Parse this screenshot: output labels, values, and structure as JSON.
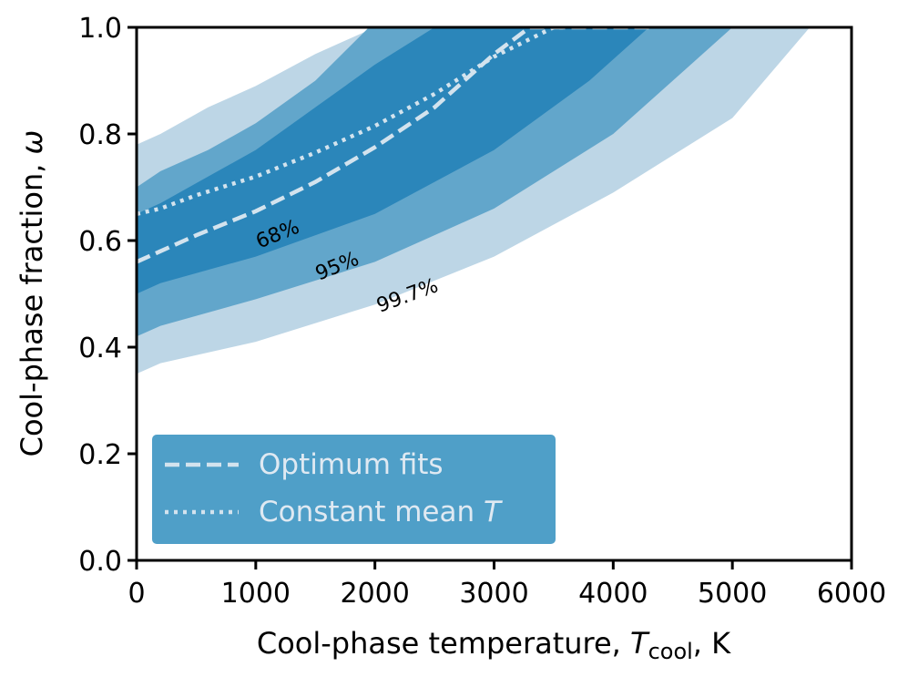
{
  "chart_data": {
    "type": "area",
    "xlabel_prefix": "Cool-phase temperature, ",
    "xlabel_var": "T",
    "xlabel_sub": "cool",
    "xlabel_suffix": ", K",
    "ylabel_prefix": "Cool-phase fraction, ",
    "ylabel_var": "ω",
    "xlim": [
      0,
      6000
    ],
    "ylim": [
      0.0,
      1.0
    ],
    "xticks": [
      0,
      1000,
      2000,
      3000,
      4000,
      5000,
      6000
    ],
    "xtick_labels": [
      "0",
      "1000",
      "2000",
      "3000",
      "4000",
      "5000",
      "6000"
    ],
    "yticks": [
      0.0,
      0.2,
      0.4,
      0.6,
      0.8,
      1.0
    ],
    "ytick_labels": [
      "0.0",
      "0.2",
      "0.4",
      "0.6",
      "0.8",
      "1.0"
    ],
    "bands": [
      {
        "name": "99.7%",
        "color": "#bdd6e6",
        "upper": [
          [
            0,
            0.78
          ],
          [
            200,
            0.8
          ],
          [
            600,
            0.85
          ],
          [
            1000,
            0.89
          ],
          [
            1500,
            0.95
          ],
          [
            2000,
            1.0
          ]
        ],
        "lower": [
          [
            0,
            0.35
          ],
          [
            200,
            0.37
          ],
          [
            1000,
            0.41
          ],
          [
            2000,
            0.48
          ],
          [
            3000,
            0.57
          ],
          [
            4000,
            0.69
          ],
          [
            5000,
            0.83
          ],
          [
            5650,
            1.0
          ]
        ]
      },
      {
        "name": "95%",
        "color": "#62a6cb",
        "upper": [
          [
            0,
            0.7
          ],
          [
            200,
            0.73
          ],
          [
            600,
            0.77
          ],
          [
            1000,
            0.82
          ],
          [
            1500,
            0.9
          ],
          [
            1950,
            1.0
          ]
        ],
        "lower": [
          [
            0,
            0.42
          ],
          [
            200,
            0.44
          ],
          [
            1000,
            0.49
          ],
          [
            2000,
            0.56
          ],
          [
            3000,
            0.66
          ],
          [
            4000,
            0.8
          ],
          [
            5000,
            1.0
          ]
        ]
      },
      {
        "name": "68%",
        "color": "#2b86ba",
        "upper": [
          [
            0,
            0.65
          ],
          [
            200,
            0.67
          ],
          [
            600,
            0.72
          ],
          [
            1000,
            0.77
          ],
          [
            1500,
            0.85
          ],
          [
            2000,
            0.93
          ],
          [
            2500,
            1.0
          ]
        ],
        "lower": [
          [
            0,
            0.5
          ],
          [
            200,
            0.52
          ],
          [
            1000,
            0.57
          ],
          [
            2000,
            0.65
          ],
          [
            3000,
            0.77
          ],
          [
            3800,
            0.9
          ],
          [
            4300,
            1.0
          ]
        ]
      }
    ],
    "series": [
      {
        "name": "Optimum fits",
        "style": "dashed",
        "color": "#d3e3ee",
        "x": [
          0,
          200,
          500,
          1000,
          1500,
          2000,
          2500,
          3000,
          3300,
          3500,
          4000,
          4300
        ],
        "y": [
          0.56,
          0.58,
          0.61,
          0.655,
          0.71,
          0.775,
          0.85,
          0.95,
          1.0,
          1.0,
          1.0,
          1.0
        ]
      },
      {
        "name": "Constant mean T",
        "style": "dotted",
        "color": "#d3e3ee",
        "x": [
          0,
          200,
          500,
          1000,
          1500,
          2000,
          2500,
          3000,
          3500,
          3600
        ],
        "y": [
          0.65,
          0.66,
          0.685,
          0.72,
          0.765,
          0.815,
          0.875,
          0.945,
          1.0,
          1.0
        ]
      }
    ],
    "annotations": [
      {
        "text": "68%",
        "x": 1030,
        "y": 0.585,
        "angle": -22
      },
      {
        "text": "95%",
        "x": 1530,
        "y": 0.525,
        "angle": -22
      },
      {
        "text": "99.7%",
        "x": 2040,
        "y": 0.465,
        "angle": -20
      }
    ],
    "legend": {
      "location": "lower-left",
      "background": "#4f9fc8",
      "entries": [
        {
          "label": "Optimum fits",
          "style": "dashed"
        },
        {
          "label_prefix": "Constant mean ",
          "label_var": "T",
          "style": "dotted"
        }
      ]
    }
  }
}
